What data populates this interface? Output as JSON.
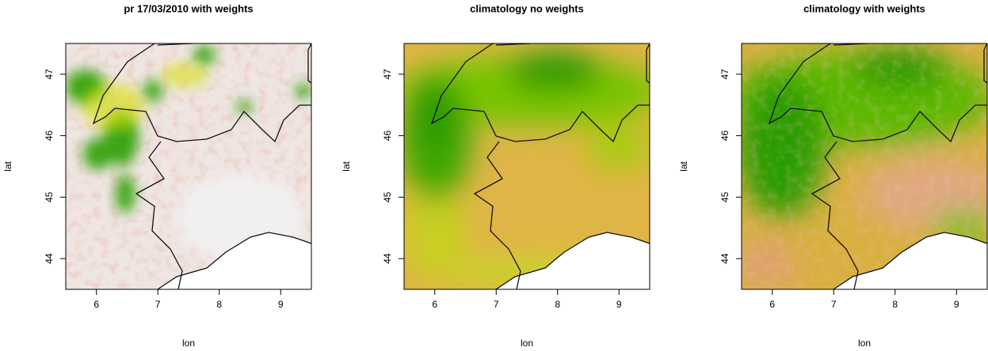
{
  "chart_data": [
    {
      "type": "map",
      "title": "pr 17/03/2010 with weights",
      "x_label": "lon",
      "y_label": "lat",
      "xlim": [
        5.5,
        9.5
      ],
      "ylim": [
        43.5,
        47.5
      ],
      "xticks": [
        6,
        7,
        8,
        9
      ],
      "yticks": [
        44,
        45,
        46,
        47
      ]
    },
    {
      "type": "map",
      "title": "climatology no weights",
      "x_label": "lon",
      "y_label": "lat",
      "xlim": [
        5.5,
        9.5
      ],
      "ylim": [
        43.5,
        47.5
      ],
      "xticks": [
        6,
        7,
        8,
        9
      ],
      "yticks": [
        44,
        45,
        46,
        47
      ]
    },
    {
      "type": "map",
      "title": "climatology with weights",
      "x_label": "lon",
      "y_label": "lat",
      "xlim": [
        5.5,
        9.5
      ],
      "ylim": [
        43.5,
        47.5
      ],
      "xticks": [
        6,
        7,
        8,
        9
      ],
      "yticks": [
        44,
        45,
        46,
        47
      ]
    }
  ]
}
